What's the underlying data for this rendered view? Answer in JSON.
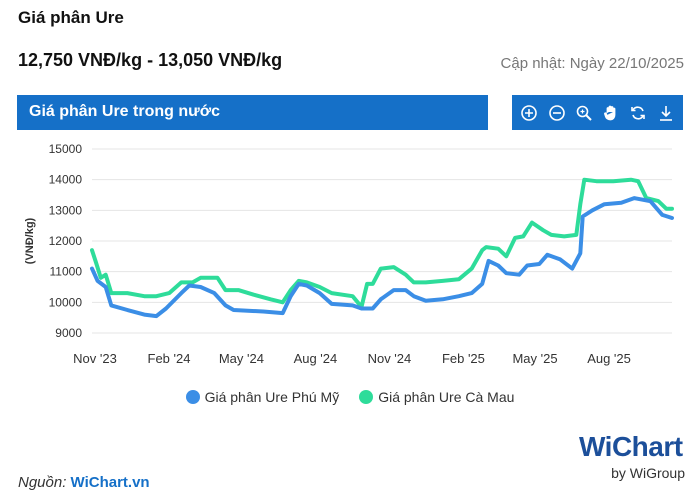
{
  "header": {
    "title": "Giá phân Ure",
    "price_range": "12,750 VNĐ/kg - 13,050 VNĐ/kg",
    "updated": "Cập nhật: Ngày 22/10/2025"
  },
  "panel": {
    "title": "Giá phân Ure trong nước"
  },
  "toolbar": [
    "zoom-in-icon",
    "zoom-out-icon",
    "magnify-icon",
    "pan-hand-icon",
    "reset-icon",
    "download-icon"
  ],
  "colors": {
    "accent": "#1570c8",
    "phu_my": "#3b8ee6",
    "ca_mau": "#2edc9a"
  },
  "footer": {
    "source_label": "Nguồn:",
    "source_link": "WiChart.vn",
    "logo_text": "WiChart",
    "logo_sub": "by WiGroup"
  },
  "chart_data": {
    "type": "line",
    "title": "",
    "ylabel": "(VNĐ/kg)",
    "xlabel": "",
    "ylim": [
      9000,
      15000
    ],
    "yticks": [
      "15000",
      "14000",
      "13000",
      "12000",
      "11000",
      "10000",
      "9000"
    ],
    "xticks": [
      "Nov '23",
      "Feb '24",
      "May '24",
      "Aug '24",
      "Nov '24",
      "Feb '25",
      "May '25",
      "Aug '25"
    ],
    "legend_position": "bottom",
    "grid": true,
    "series": [
      {
        "name": "Giá phân Ure Phú Mỹ",
        "points": [
          [
            "2023-11-01",
            11100
          ],
          [
            "2023-11-08",
            10700
          ],
          [
            "2023-11-18",
            10500
          ],
          [
            "2023-11-25",
            9900
          ],
          [
            "2023-12-15",
            9750
          ],
          [
            "2024-01-05",
            9600
          ],
          [
            "2024-01-20",
            9550
          ],
          [
            "2024-02-01",
            9800
          ],
          [
            "2024-02-20",
            10300
          ],
          [
            "2024-03-01",
            10550
          ],
          [
            "2024-03-15",
            10500
          ],
          [
            "2024-04-01",
            10300
          ],
          [
            "2024-04-15",
            9900
          ],
          [
            "2024-04-25",
            9750
          ],
          [
            "2024-06-01",
            9700
          ],
          [
            "2024-06-25",
            9650
          ],
          [
            "2024-07-05",
            10200
          ],
          [
            "2024-07-15",
            10600
          ],
          [
            "2024-07-25",
            10550
          ],
          [
            "2024-08-10",
            10300
          ],
          [
            "2024-08-25",
            9950
          ],
          [
            "2024-09-20",
            9900
          ],
          [
            "2024-10-01",
            9800
          ],
          [
            "2024-10-15",
            9800
          ],
          [
            "2024-10-25",
            10100
          ],
          [
            "2024-11-10",
            10400
          ],
          [
            "2024-11-25",
            10400
          ],
          [
            "2024-12-05",
            10200
          ],
          [
            "2024-12-20",
            10050
          ],
          [
            "2025-01-10",
            10100
          ],
          [
            "2025-01-30",
            10200
          ],
          [
            "2025-02-15",
            10300
          ],
          [
            "2025-02-28",
            10600
          ],
          [
            "2025-03-08",
            11350
          ],
          [
            "2025-03-20",
            11200
          ],
          [
            "2025-03-30",
            10950
          ],
          [
            "2025-04-15",
            10900
          ],
          [
            "2025-04-25",
            11200
          ],
          [
            "2025-05-10",
            11250
          ],
          [
            "2025-05-20",
            11550
          ],
          [
            "2025-06-05",
            11400
          ],
          [
            "2025-06-20",
            11100
          ],
          [
            "2025-06-30",
            11600
          ],
          [
            "2025-07-03",
            12800
          ],
          [
            "2025-07-15",
            13000
          ],
          [
            "2025-07-30",
            13200
          ],
          [
            "2025-08-20",
            13250
          ],
          [
            "2025-09-05",
            13400
          ],
          [
            "2025-09-25",
            13300
          ],
          [
            "2025-10-10",
            12850
          ],
          [
            "2025-10-22",
            12750
          ]
        ]
      },
      {
        "name": "Giá phân Ure Cà Mau",
        "points": [
          [
            "2023-11-01",
            11700
          ],
          [
            "2023-11-06",
            11300
          ],
          [
            "2023-11-12",
            10800
          ],
          [
            "2023-11-18",
            10900
          ],
          [
            "2023-11-25",
            10300
          ],
          [
            "2023-12-15",
            10300
          ],
          [
            "2024-01-05",
            10200
          ],
          [
            "2024-01-20",
            10200
          ],
          [
            "2024-02-05",
            10300
          ],
          [
            "2024-02-20",
            10650
          ],
          [
            "2024-03-05",
            10650
          ],
          [
            "2024-03-15",
            10800
          ],
          [
            "2024-04-05",
            10800
          ],
          [
            "2024-04-15",
            10400
          ],
          [
            "2024-05-01",
            10400
          ],
          [
            "2024-05-20",
            10250
          ],
          [
            "2024-06-10",
            10100
          ],
          [
            "2024-06-25",
            10000
          ],
          [
            "2024-07-05",
            10400
          ],
          [
            "2024-07-15",
            10700
          ],
          [
            "2024-07-25",
            10650
          ],
          [
            "2024-08-10",
            10500
          ],
          [
            "2024-08-25",
            10300
          ],
          [
            "2024-09-20",
            10200
          ],
          [
            "2024-10-01",
            9850
          ],
          [
            "2024-10-08",
            10600
          ],
          [
            "2024-10-15",
            10600
          ],
          [
            "2024-10-25",
            11100
          ],
          [
            "2024-11-10",
            11150
          ],
          [
            "2024-11-25",
            10900
          ],
          [
            "2024-12-05",
            10650
          ],
          [
            "2024-12-20",
            10650
          ],
          [
            "2025-01-10",
            10700
          ],
          [
            "2025-01-30",
            10750
          ],
          [
            "2025-02-15",
            11100
          ],
          [
            "2025-02-28",
            11700
          ],
          [
            "2025-03-05",
            11800
          ],
          [
            "2025-03-20",
            11750
          ],
          [
            "2025-03-30",
            11500
          ],
          [
            "2025-04-10",
            12100
          ],
          [
            "2025-04-20",
            12150
          ],
          [
            "2025-05-01",
            12600
          ],
          [
            "2025-05-15",
            12350
          ],
          [
            "2025-05-25",
            12200
          ],
          [
            "2025-06-10",
            12150
          ],
          [
            "2025-06-25",
            12200
          ],
          [
            "2025-06-30",
            13200
          ],
          [
            "2025-07-05",
            14000
          ],
          [
            "2025-07-20",
            13950
          ],
          [
            "2025-08-10",
            13950
          ],
          [
            "2025-09-01",
            14000
          ],
          [
            "2025-09-10",
            13950
          ],
          [
            "2025-09-20",
            13400
          ],
          [
            "2025-10-05",
            13300
          ],
          [
            "2025-10-15",
            13050
          ],
          [
            "2025-10-22",
            13050
          ]
        ]
      }
    ]
  }
}
